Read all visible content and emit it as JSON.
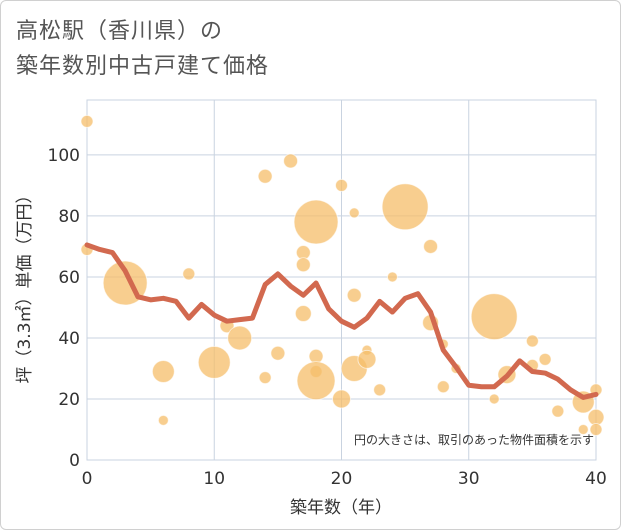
{
  "title_line1": "高松駅（香川県）の",
  "title_line2": "築年数別中古戸建て価格",
  "chart_data": {
    "type": "scatter+line",
    "xlabel": "築年数（年）",
    "ylabel": "坪（3.3㎡）単価（万円）",
    "xlim": [
      0,
      40
    ],
    "ylim": [
      0,
      118
    ],
    "xticks": [
      0,
      10,
      20,
      30,
      40
    ],
    "yticks": [
      0,
      20,
      40,
      60,
      80,
      100
    ],
    "note": "円の大きさは、取引のあった物件面積を示す",
    "colors": {
      "bubble": "#F5BE6A",
      "line": "#D2694F",
      "grid": "#c9d3e0"
    },
    "bubbles": [
      {
        "x": 0,
        "y": 111,
        "s": 6
      },
      {
        "x": 0,
        "y": 69,
        "s": 6
      },
      {
        "x": 3,
        "y": 58,
        "s": 22
      },
      {
        "x": 6,
        "y": 29,
        "s": 11
      },
      {
        "x": 6,
        "y": 13,
        "s": 5
      },
      {
        "x": 8,
        "y": 61,
        "s": 6
      },
      {
        "x": 10,
        "y": 32,
        "s": 16
      },
      {
        "x": 11,
        "y": 44,
        "s": 7
      },
      {
        "x": 12,
        "y": 40,
        "s": 12
      },
      {
        "x": 14,
        "y": 93,
        "s": 7
      },
      {
        "x": 14,
        "y": 27,
        "s": 6
      },
      {
        "x": 15,
        "y": 35,
        "s": 7
      },
      {
        "x": 16,
        "y": 98,
        "s": 7
      },
      {
        "x": 17,
        "y": 68,
        "s": 7
      },
      {
        "x": 17,
        "y": 64,
        "s": 7
      },
      {
        "x": 17,
        "y": 48,
        "s": 8
      },
      {
        "x": 18,
        "y": 78,
        "s": 22
      },
      {
        "x": 18,
        "y": 34,
        "s": 7
      },
      {
        "x": 18,
        "y": 29,
        "s": 6
      },
      {
        "x": 18,
        "y": 26,
        "s": 19
      },
      {
        "x": 20,
        "y": 90,
        "s": 6
      },
      {
        "x": 20,
        "y": 20,
        "s": 9
      },
      {
        "x": 21,
        "y": 81,
        "s": 5
      },
      {
        "x": 21,
        "y": 54,
        "s": 7
      },
      {
        "x": 21,
        "y": 30,
        "s": 13
      },
      {
        "x": 22,
        "y": 36,
        "s": 5
      },
      {
        "x": 22,
        "y": 33,
        "s": 9
      },
      {
        "x": 23,
        "y": 23,
        "s": 6
      },
      {
        "x": 24,
        "y": 60,
        "s": 5
      },
      {
        "x": 25,
        "y": 83,
        "s": 23
      },
      {
        "x": 27,
        "y": 70,
        "s": 7
      },
      {
        "x": 27,
        "y": 45,
        "s": 8
      },
      {
        "x": 28,
        "y": 38,
        "s": 5
      },
      {
        "x": 28,
        "y": 24,
        "s": 6
      },
      {
        "x": 29,
        "y": 30,
        "s": 5
      },
      {
        "x": 32,
        "y": 47,
        "s": 23
      },
      {
        "x": 32,
        "y": 20,
        "s": 5
      },
      {
        "x": 33,
        "y": 28,
        "s": 9
      },
      {
        "x": 35,
        "y": 39,
        "s": 6
      },
      {
        "x": 35,
        "y": 31,
        "s": 6
      },
      {
        "x": 36,
        "y": 33,
        "s": 6
      },
      {
        "x": 37,
        "y": 16,
        "s": 6
      },
      {
        "x": 39,
        "y": 19,
        "s": 11
      },
      {
        "x": 39,
        "y": 10,
        "s": 5
      },
      {
        "x": 40,
        "y": 23,
        "s": 6
      },
      {
        "x": 40,
        "y": 14,
        "s": 8
      },
      {
        "x": 40,
        "y": 10,
        "s": 6
      }
    ],
    "trend": {
      "x": [
        0,
        1,
        2,
        3,
        4,
        5,
        6,
        7,
        8,
        9,
        10,
        11,
        12,
        13,
        14,
        15,
        16,
        17,
        18,
        19,
        20,
        21,
        22,
        23,
        24,
        25,
        26,
        27,
        28,
        29,
        30,
        31,
        32,
        33,
        34,
        35,
        36,
        37,
        38,
        39,
        40
      ],
      "y": [
        70.5,
        69,
        68,
        62,
        53.5,
        52.5,
        53,
        52,
        46.5,
        51,
        47.5,
        45.5,
        46,
        46.5,
        57.5,
        61,
        57,
        54,
        58,
        49.5,
        45.5,
        43.5,
        46.5,
        52,
        48.5,
        53,
        54.5,
        48.5,
        36,
        30.5,
        24.5,
        24,
        24,
        27.5,
        32.5,
        29,
        28.5,
        26.5,
        23,
        20.5,
        21.5
      ]
    }
  }
}
